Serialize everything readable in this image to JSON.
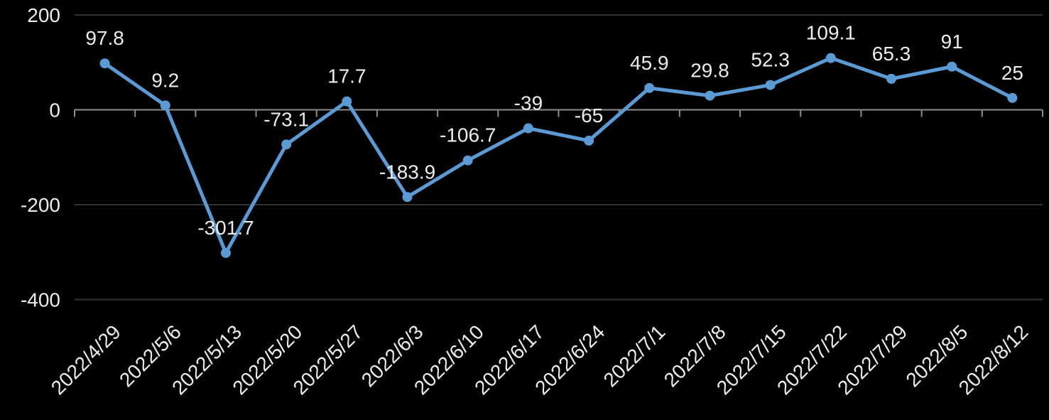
{
  "chart_data": {
    "type": "line",
    "title": "",
    "categories": [
      "2022/4/29",
      "2022/5/6",
      "2022/5/13",
      "2022/5/20",
      "2022/5/27",
      "2022/6/3",
      "2022/6/10",
      "2022/6/17",
      "2022/6/24",
      "2022/7/1",
      "2022/7/8",
      "2022/7/15",
      "2022/7/22",
      "2022/7/29",
      "2022/8/5",
      "2022/8/12"
    ],
    "values": [
      97.8,
      9.2,
      -301.7,
      -73.1,
      17.7,
      -183.9,
      -106.7,
      -39,
      -65,
      45.9,
      29.8,
      52.3,
      109.1,
      65.3,
      91,
      25
    ],
    "data_labels": [
      "97.8",
      "9.2",
      "-301.7",
      "-73.1",
      "17.7",
      "-183.9",
      "-106.7",
      "-39",
      "-65",
      "45.9",
      "29.8",
      "52.3",
      "109.1",
      "65.3",
      "91",
      "25"
    ],
    "y_ticks": [
      200,
      0,
      -200,
      -400
    ],
    "y_tick_labels": [
      "200",
      "0",
      "-200",
      "-400"
    ],
    "ylim": [
      -400,
      200
    ],
    "xlabel": "",
    "ylabel": "",
    "legend": "none",
    "grid": "horizontal-major",
    "x_label_rotation": 45,
    "data_label_position": "above",
    "colors": {
      "background": "#000000",
      "series": "#5B9BD5",
      "marker": "#5B9BD5",
      "text": "#ECECEC",
      "gridline": "#333333",
      "axis": "#8C8C8C"
    }
  }
}
